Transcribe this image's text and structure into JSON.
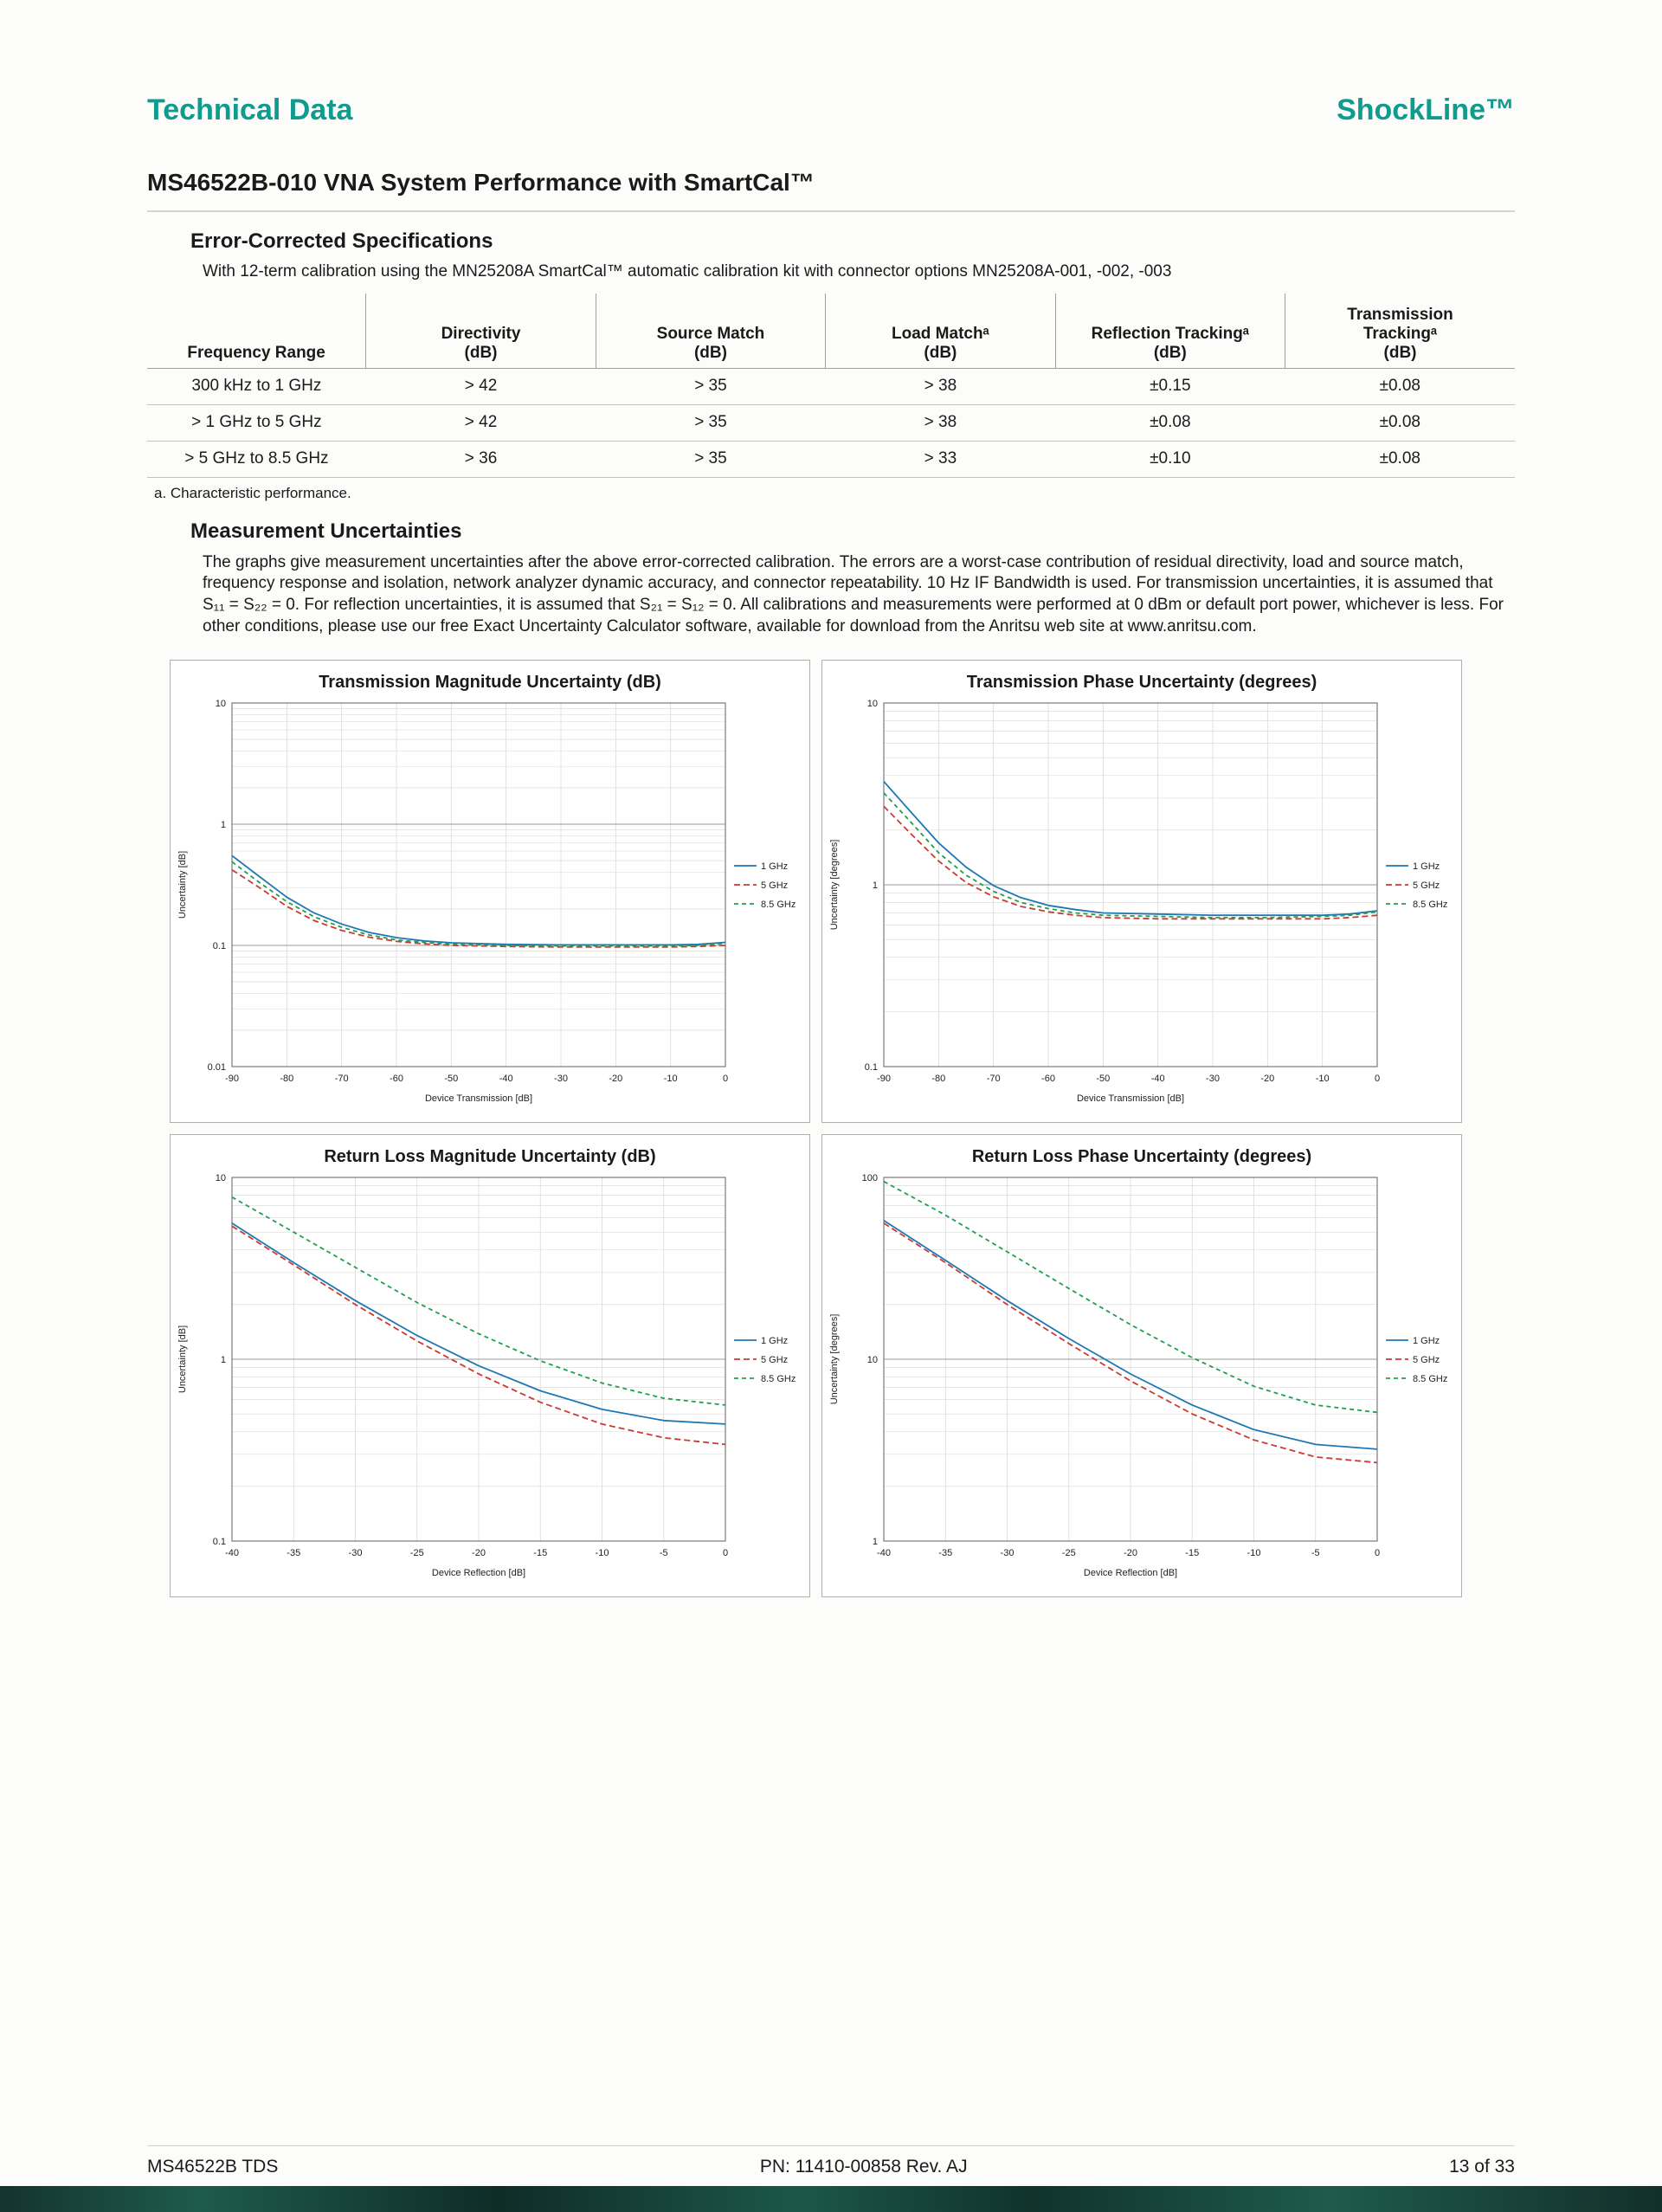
{
  "page": {
    "header_left": "Technical Data",
    "header_right": "ShockLine™",
    "title": "MS46522B-010 VNA System Performance with SmartCal™",
    "footer": {
      "left": "MS46522B TDS",
      "center": "PN: 11410-00858 Rev. AJ",
      "right": "13 of 33"
    }
  },
  "colors": {
    "accent_teal": "#0f9b8e",
    "line_1ghz": "#1f77b4",
    "line_5ghz": "#cc3b33",
    "line_8_5ghz": "#1fa050"
  },
  "error_corrected": {
    "heading": "Error-Corrected Specifications",
    "intro": "With 12-term calibration using the MN25208A SmartCal™ automatic calibration kit with connector options MN25208A-001, -002, -003",
    "table": {
      "columns": [
        {
          "label": "Frequency Range"
        },
        {
          "label": "Directivity",
          "unit": "(dB)"
        },
        {
          "label": "Source Match",
          "unit": "(dB)"
        },
        {
          "label": "Load Matchᵃ",
          "unit": "(dB)"
        },
        {
          "label": "Reflection Trackingᵃ",
          "unit": "(dB)"
        },
        {
          "label": "Transmission\nTrackingᵃ",
          "unit": "(dB)"
        }
      ],
      "rows": [
        [
          "300 kHz to 1 GHz",
          "> 42",
          "> 35",
          "> 38",
          "±0.15",
          "±0.08"
        ],
        [
          "> 1 GHz to 5 GHz",
          "> 42",
          "> 35",
          "> 38",
          "±0.08",
          "±0.08"
        ],
        [
          "> 5 GHz to 8.5 GHz",
          "> 36",
          "> 35",
          "> 33",
          "±0.10",
          "±0.08"
        ]
      ],
      "footnote": "a. Characteristic performance."
    }
  },
  "measurement": {
    "heading": "Measurement Uncertainties",
    "body": "The graphs give measurement uncertainties after the above error-corrected calibration. The errors are a worst-case contribution of residual directivity, load and source match, frequency response and isolation, network analyzer dynamic accuracy, and connector repeatability. 10 Hz IF Bandwidth is used. For transmission uncertainties, it is assumed that S₁₁ = S₂₂ = 0. For reflection uncertainties, it is assumed that S₂₁ = S₁₂ = 0. All calibrations and measurements were performed at 0 dBm or default port power, whichever is less. For other conditions, please use our free Exact Uncertainty Calculator software, available for download from the Anritsu web site at www.anritsu.com."
  },
  "chart_data": [
    {
      "type": "line",
      "title": "Transmission Magnitude Uncertainty (dB)",
      "xlabel": "Device Transmission [dB]",
      "ylabel": "Uncertainty [dB]",
      "xlim": [
        -90,
        0
      ],
      "xtick_step": 10,
      "ylim": [
        0.01,
        10
      ],
      "yscale": "log",
      "legend_position": "right",
      "series": [
        {
          "name": "1 GHz",
          "color": "#1f77b4",
          "dash": null,
          "points": [
            [
              -90,
              0.55
            ],
            [
              -85,
              0.37
            ],
            [
              -80,
              0.25
            ],
            [
              -75,
              0.185
            ],
            [
              -70,
              0.15
            ],
            [
              -65,
              0.128
            ],
            [
              -60,
              0.116
            ],
            [
              -55,
              0.109
            ],
            [
              -50,
              0.105
            ],
            [
              -40,
              0.102
            ],
            [
              -30,
              0.101
            ],
            [
              -20,
              0.101
            ],
            [
              -10,
              0.101
            ],
            [
              -5,
              0.102
            ],
            [
              0,
              0.106
            ]
          ]
        },
        {
          "name": "5 GHz",
          "color": "#cc3b33",
          "dash": "7,4",
          "points": [
            [
              -90,
              0.42
            ],
            [
              -85,
              0.3
            ],
            [
              -80,
              0.21
            ],
            [
              -75,
              0.16
            ],
            [
              -70,
              0.133
            ],
            [
              -65,
              0.117
            ],
            [
              -60,
              0.108
            ],
            [
              -55,
              0.103
            ],
            [
              -50,
              0.1
            ],
            [
              -40,
              0.098
            ],
            [
              -30,
              0.097
            ],
            [
              -20,
              0.097
            ],
            [
              -10,
              0.097
            ],
            [
              -5,
              0.098
            ],
            [
              0,
              0.1
            ]
          ]
        },
        {
          "name": "8.5 GHz",
          "color": "#1fa050",
          "dash": "5,4",
          "points": [
            [
              -90,
              0.49
            ],
            [
              -85,
              0.33
            ],
            [
              -80,
              0.23
            ],
            [
              -75,
              0.172
            ],
            [
              -70,
              0.141
            ],
            [
              -65,
              0.122
            ],
            [
              -60,
              0.111
            ],
            [
              -55,
              0.106
            ],
            [
              -50,
              0.102
            ],
            [
              -40,
              0.1
            ],
            [
              -30,
              0.099
            ],
            [
              -20,
              0.099
            ],
            [
              -10,
              0.099
            ],
            [
              -5,
              0.1
            ],
            [
              0,
              0.104
            ]
          ]
        }
      ]
    },
    {
      "type": "line",
      "title": "Transmission Phase Uncertainty (degrees)",
      "xlabel": "Device Transmission [dB]",
      "ylabel": "Uncertainty [degrees]",
      "xlim": [
        -90,
        0
      ],
      "xtick_step": 10,
      "ylim": [
        0.1,
        10
      ],
      "yscale": "log",
      "legend_position": "right",
      "series": [
        {
          "name": "1 GHz",
          "color": "#1f77b4",
          "dash": null,
          "points": [
            [
              -90,
              3.7
            ],
            [
              -85,
              2.5
            ],
            [
              -80,
              1.7
            ],
            [
              -75,
              1.25
            ],
            [
              -70,
              0.99
            ],
            [
              -65,
              0.85
            ],
            [
              -60,
              0.77
            ],
            [
              -55,
              0.73
            ],
            [
              -50,
              0.7
            ],
            [
              -40,
              0.69
            ],
            [
              -30,
              0.68
            ],
            [
              -20,
              0.68
            ],
            [
              -10,
              0.68
            ],
            [
              -5,
              0.69
            ],
            [
              0,
              0.72
            ]
          ]
        },
        {
          "name": "5 GHz",
          "color": "#cc3b33",
          "dash": "7,4",
          "points": [
            [
              -90,
              2.7
            ],
            [
              -85,
              1.9
            ],
            [
              -80,
              1.35
            ],
            [
              -75,
              1.03
            ],
            [
              -70,
              0.86
            ],
            [
              -65,
              0.76
            ],
            [
              -60,
              0.71
            ],
            [
              -55,
              0.68
            ],
            [
              -50,
              0.66
            ],
            [
              -40,
              0.65
            ],
            [
              -30,
              0.65
            ],
            [
              -20,
              0.65
            ],
            [
              -10,
              0.65
            ],
            [
              -5,
              0.66
            ],
            [
              0,
              0.68
            ]
          ]
        },
        {
          "name": "8.5 GHz",
          "color": "#1fa050",
          "dash": "5,4",
          "points": [
            [
              -90,
              3.2
            ],
            [
              -85,
              2.2
            ],
            [
              -80,
              1.5
            ],
            [
              -75,
              1.13
            ],
            [
              -70,
              0.92
            ],
            [
              -65,
              0.8
            ],
            [
              -60,
              0.74
            ],
            [
              -55,
              0.7
            ],
            [
              -50,
              0.68
            ],
            [
              -40,
              0.67
            ],
            [
              -30,
              0.66
            ],
            [
              -20,
              0.66
            ],
            [
              -10,
              0.67
            ],
            [
              -5,
              0.68
            ],
            [
              0,
              0.71
            ]
          ]
        }
      ]
    },
    {
      "type": "line",
      "title": "Return Loss Magnitude Uncertainty (dB)",
      "xlabel": "Device Reflection [dB]",
      "ylabel": "Uncertainty [dB]",
      "xlim": [
        -40,
        0
      ],
      "xtick_step": 5,
      "ylim": [
        0.1,
        10
      ],
      "yscale": "log",
      "legend_position": "right",
      "series": [
        {
          "name": "1 GHz",
          "color": "#1f77b4",
          "dash": null,
          "points": [
            [
              -40,
              5.6
            ],
            [
              -35,
              3.4
            ],
            [
              -30,
              2.1
            ],
            [
              -25,
              1.35
            ],
            [
              -20,
              0.92
            ],
            [
              -15,
              0.67
            ],
            [
              -10,
              0.53
            ],
            [
              -5,
              0.46
            ],
            [
              0,
              0.44
            ]
          ]
        },
        {
          "name": "5 GHz",
          "color": "#cc3b33",
          "dash": "7,4",
          "points": [
            [
              -40,
              5.4
            ],
            [
              -35,
              3.3
            ],
            [
              -30,
              2.0
            ],
            [
              -25,
              1.26
            ],
            [
              -20,
              0.83
            ],
            [
              -15,
              0.58
            ],
            [
              -10,
              0.44
            ],
            [
              -5,
              0.37
            ],
            [
              0,
              0.34
            ]
          ]
        },
        {
          "name": "8.5 GHz",
          "color": "#1fa050",
          "dash": "5,4",
          "points": [
            [
              -40,
              7.8
            ],
            [
              -35,
              5.0
            ],
            [
              -30,
              3.2
            ],
            [
              -25,
              2.05
            ],
            [
              -20,
              1.38
            ],
            [
              -15,
              0.98
            ],
            [
              -10,
              0.74
            ],
            [
              -5,
              0.61
            ],
            [
              0,
              0.56
            ]
          ]
        }
      ]
    },
    {
      "type": "line",
      "title": "Return Loss Phase Uncertainty (degrees)",
      "xlabel": "Device Reflection [dB]",
      "ylabel": "Uncertainty [degrees]",
      "xlim": [
        -40,
        0
      ],
      "xtick_step": 5,
      "ylim": [
        1,
        100
      ],
      "yscale": "log",
      "legend_position": "right",
      "series": [
        {
          "name": "1 GHz",
          "color": "#1f77b4",
          "dash": null,
          "points": [
            [
              -40,
              58
            ],
            [
              -35,
              35
            ],
            [
              -30,
              21
            ],
            [
              -25,
              13
            ],
            [
              -20,
              8.3
            ],
            [
              -15,
              5.6
            ],
            [
              -10,
              4.1
            ],
            [
              -5,
              3.4
            ],
            [
              0,
              3.2
            ]
          ]
        },
        {
          "name": "5 GHz",
          "color": "#cc3b33",
          "dash": "7,4",
          "points": [
            [
              -40,
              56
            ],
            [
              -35,
              34
            ],
            [
              -30,
              20
            ],
            [
              -25,
              12.2
            ],
            [
              -20,
              7.6
            ],
            [
              -15,
              5.0
            ],
            [
              -10,
              3.6
            ],
            [
              -5,
              2.9
            ],
            [
              0,
              2.7
            ]
          ]
        },
        {
          "name": "8.5 GHz",
          "color": "#1fa050",
          "dash": "5,4",
          "points": [
            [
              -40,
              95
            ],
            [
              -35,
              62
            ],
            [
              -30,
              39
            ],
            [
              -25,
              24.5
            ],
            [
              -20,
              15.5
            ],
            [
              -15,
              10.2
            ],
            [
              -10,
              7.1
            ],
            [
              -5,
              5.6
            ],
            [
              0,
              5.1
            ]
          ]
        }
      ]
    }
  ]
}
